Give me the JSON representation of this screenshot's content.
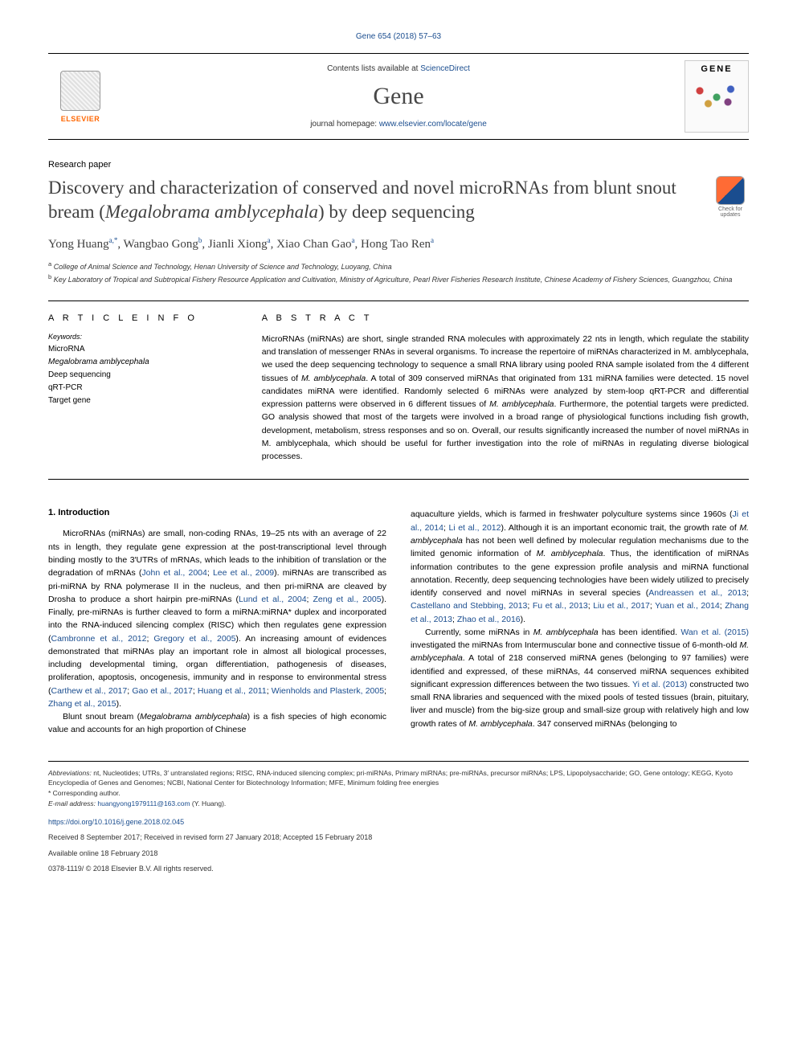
{
  "journal_ref": "Gene 654 (2018) 57–63",
  "header": {
    "contents_prefix": "Contents lists available at ",
    "contents_link": "ScienceDirect",
    "journal_name": "Gene",
    "homepage_prefix": "journal homepage: ",
    "homepage_link": "www.elsevier.com/locate/gene",
    "publisher": "ELSEVIER",
    "cover_title": "GENE"
  },
  "paper_type": "Research paper",
  "title_parts": {
    "pre": "Discovery and characterization of conserved and novel microRNAs from blunt snout bream (",
    "ital": "Megalobrama amblycephala",
    "post": ") by deep sequencing"
  },
  "updates_label": "Check for updates",
  "authors_html": "Yong Huang<sup>a,*</sup>, Wangbao Gong<sup>b</sup>, Jianli Xiong<sup>a</sup>, Xiao Chan Gao<sup>a</sup>, Hong Tao Ren<sup>a</sup>",
  "affiliations": [
    {
      "sup": "a",
      "text": "College of Animal Science and Technology, Henan University of Science and Technology, Luoyang, China"
    },
    {
      "sup": "b",
      "text": "Key Laboratory of Tropical and Subtropical Fishery Resource Application and Cultivation, Ministry of Agriculture, Pearl River Fisheries Research Institute, Chinese Academy of Fishery Sciences, Guangzhou, China"
    }
  ],
  "article_info": {
    "head": "A R T I C L E  I N F O",
    "keywords_label": "Keywords:",
    "keywords": [
      "MicroRNA",
      "Megalobrama amblycephala",
      "Deep sequencing",
      "qRT-PCR",
      "Target gene"
    ]
  },
  "abstract": {
    "head": "A B S T R A C T",
    "text_html": "MicroRNAs (miRNAs) are short, single stranded RNA molecules with approximately 22 nts in length, which regulate the stability and translation of messenger RNAs in several organisms. To increase the repertoire of miRNAs characterized in M. amblycephala, we used the deep sequencing technology to sequence a small RNA library using pooled RNA sample isolated from the 4 different tissues of <span class=\"ital\">M. amblycephala</span>. A total of 309 conserved miRNAs that originated from 131 miRNA families were detected. 15 novel candidates miRNA were identified. Randomly selected 6 miRNAs were analyzed by stem-loop qRT-PCR and differential expression patterns were observed in 6 different tissues of <span class=\"ital\">M. amblycephala</span>. Furthermore, the potential targets were predicted. GO analysis showed that most of the targets were involved in a broad range of physiological functions including fish growth, development, metabolism, stress responses and so on. Overall, our results significantly increased the number of novel miRNAs in M. amblycephala, which should be useful for further investigation into the role of miRNAs in regulating diverse biological processes."
  },
  "body": {
    "intro_head": "1. Introduction",
    "col1_html": "MicroRNAs (miRNAs) are small, non-coding RNAs, 19–25 nts with an average of 22 nts in length, they regulate gene expression at the post-transcriptional level through binding mostly to the 3′UTRs of mRNAs, which leads to the inhibition of translation or the degradation of mRNAs (<a class=\"ref-link\">John et al., 2004</a>; <a class=\"ref-link\">Lee et al., 2009</a>). miRNAs are transcribed as pri-miRNA by RNA polymerase II in the nucleus, and then pri-miRNA are cleaved by Drosha to produce a short hairpin pre-miRNAs (<a class=\"ref-link\">Lund et al., 2004</a>; <a class=\"ref-link\">Zeng et al., 2005</a>). Finally, pre-miRNAs is further cleaved to form a miRNA:miRNA* duplex and incorporated into the RNA-induced silencing complex (RISC) which then regulates gene expression (<a class=\"ref-link\">Cambronne et al., 2012</a>; <a class=\"ref-link\">Gregory et al., 2005</a>). An increasing amount of evidences demonstrated that miRNAs play an important role in almost all biological processes, including developmental timing, organ differentiation, pathogenesis of diseases, proliferation, apoptosis, oncogenesis, immunity and in response to environmental stress (<a class=\"ref-link\">Carthew et al., 2017</a>; <a class=\"ref-link\">Gao et al., 2017</a>; <a class=\"ref-link\">Huang et al., 2011</a>; <a class=\"ref-link\">Wienholds and Plasterk, 2005</a>; <a class=\"ref-link\">Zhang et al., 2015</a>).",
    "col1b_html": "Blunt snout bream (<span class=\"ital\">Megalobrama amblycephala</span>) is a fish species of high economic value and accounts for an high proportion of Chinese",
    "col2_html": "aquaculture yields, which is farmed in freshwater polyculture systems since 1960s (<a class=\"ref-link\">Ji et al., 2014</a>; <a class=\"ref-link\">Li et al., 2012</a>). Although it is an important economic trait, the growth rate of <span class=\"ital\">M. amblycephala</span> has not been well defined by molecular regulation mechanisms due to the limited genomic information of <span class=\"ital\">M. amblycephala</span>. Thus, the identification of miRNAs information contributes to the gene expression profile analysis and miRNA functional annotation. Recently, deep sequencing technologies have been widely utilized to precisely identify conserved and novel miRNAs in several species (<a class=\"ref-link\">Andreassen et al., 2013</a>; <a class=\"ref-link\">Castellano and Stebbing, 2013</a>; <a class=\"ref-link\">Fu et al., 2013</a>; <a class=\"ref-link\">Liu et al., 2017</a>; <a class=\"ref-link\">Yuan et al., 2014</a>; <a class=\"ref-link\">Zhang et al., 2013</a>; <a class=\"ref-link\">Zhao et al., 2016</a>).",
    "col2b_html": "Currently, some miRNAs in <span class=\"ital\">M. amblycephala</span> has been identified. <a class=\"ref-link\">Wan et al. (2015)</a> investigated the miRNAs from Intermuscular bone and connective tissue of 6-month-old <span class=\"ital\">M. amblycephala</span>. A total of 218 conserved miRNA genes (belonging to 97 families) were identified and expressed, of these miRNAs, 44 conserved miRNA sequences exhibited significant expression differences between the two tissues. <a class=\"ref-link\">Yi et al. (2013)</a> constructed two small RNA libraries and sequenced with the mixed pools of tested tissues (brain, pituitary, liver and muscle) from the big-size group and small-size group with relatively high and low growth rates of <span class=\"ital\">M. amblycephala</span>. 347 conserved miRNAs (belonging to"
  },
  "footer": {
    "abbrev_label": "Abbreviations:",
    "abbrev_text": " nt, Nucleotides; UTRs, 3′ untranslated regions; RISC, RNA-induced silencing complex; pri-miRNAs, Primary miRNAs; pre-miRNAs, precursor miRNAs; LPS, Lipopolysaccharide; GO, Gene ontology; KEGG, Kyoto Encyclopedia of Genes and Genomes; NCBI, National Center for Biotechnology Information; MFE, Minimum folding free energies",
    "corr_label": "* Corresponding author.",
    "email_label": "E-mail address: ",
    "email": "huangyong1979111@163.com",
    "email_suffix": " (Y. Huang).",
    "doi": "https://doi.org/10.1016/j.gene.2018.02.045",
    "received": "Received 8 September 2017; Received in revised form 27 January 2018; Accepted 15 February 2018",
    "available": "Available online 18 February 2018",
    "copyright": "0378-1119/ © 2018 Elsevier B.V. All rights reserved."
  },
  "colors": {
    "link": "#1a4d8f",
    "text": "#000000",
    "title": "#404040",
    "elsevier": "#ff6600"
  },
  "typography": {
    "body_fontsize": 10.5,
    "title_fontsize": 23,
    "journal_fontsize": 30,
    "authors_fontsize": 15,
    "footer_fontsize": 8.5
  }
}
